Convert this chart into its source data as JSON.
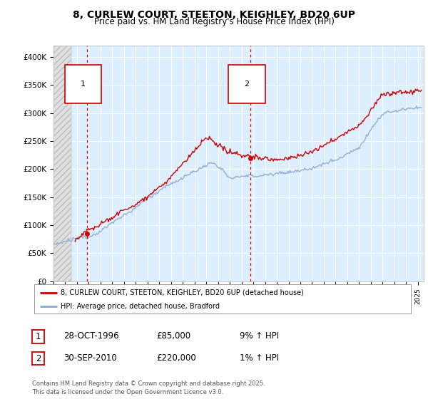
{
  "title": "8, CURLEW COURT, STEETON, KEIGHLEY, BD20 6UP",
  "subtitle": "Price paid vs. HM Land Registry's House Price Index (HPI)",
  "ylim": [
    0,
    420000
  ],
  "xlim_start": 1994.0,
  "xlim_end": 2025.5,
  "yticks": [
    0,
    50000,
    100000,
    150000,
    200000,
    250000,
    300000,
    350000,
    400000
  ],
  "ytick_labels": [
    "£0",
    "£50K",
    "£100K",
    "£150K",
    "£200K",
    "£250K",
    "£300K",
    "£350K",
    "£400K"
  ],
  "sale1_x": 1996.83,
  "sale1_y": 85000,
  "sale1_label": "1",
  "sale2_x": 2010.75,
  "sale2_y": 220000,
  "sale2_label": "2",
  "legend_line1": "8, CURLEW COURT, STEETON, KEIGHLEY, BD20 6UP (detached house)",
  "legend_line2": "HPI: Average price, detached house, Bradford",
  "date1": "28-OCT-1996",
  "price1": "£85,000",
  "hpi1": "9% ↑ HPI",
  "date2": "30-SEP-2010",
  "price2": "£220,000",
  "hpi2": "1% ↑ HPI",
  "footer": "Contains HM Land Registry data © Crown copyright and database right 2025.\nThis data is licensed under the Open Government Licence v3.0.",
  "line_color": "#cc0000",
  "hpi_color": "#88aacc",
  "bg_color": "#ddeeff",
  "hatch_bg": "#e8e8e8"
}
